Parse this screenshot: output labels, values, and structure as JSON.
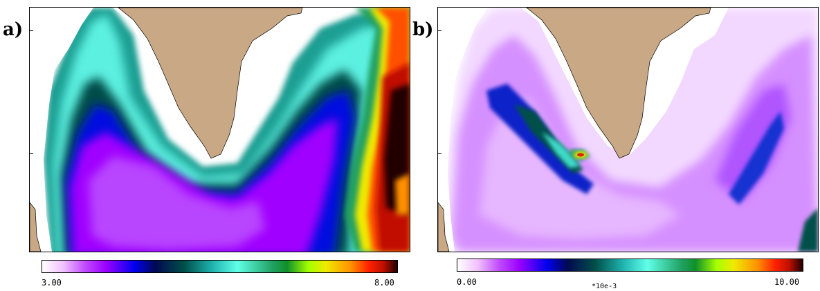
{
  "panels": [
    {
      "label": "a)",
      "colorbar": {
        "min": "3.00",
        "max": "8.00",
        "unit": ""
      }
    },
    {
      "label": "b)",
      "colorbar": {
        "min": "0.00",
        "max": "10.00",
        "unit": "*10e-3"
      }
    }
  ],
  "colors": {
    "land": "#c8a885",
    "colormap": [
      "#ffffff",
      "#f0c0ff",
      "#c24cff",
      "#9a00ff",
      "#0000ee",
      "#000a50",
      "#00504a",
      "#20b4b0",
      "#60ffe8",
      "#20a060",
      "#10902a",
      "#a4ff00",
      "#f0ea00",
      "#ff9000",
      "#ff2000",
      "#c01000",
      "#200000"
    ]
  }
}
